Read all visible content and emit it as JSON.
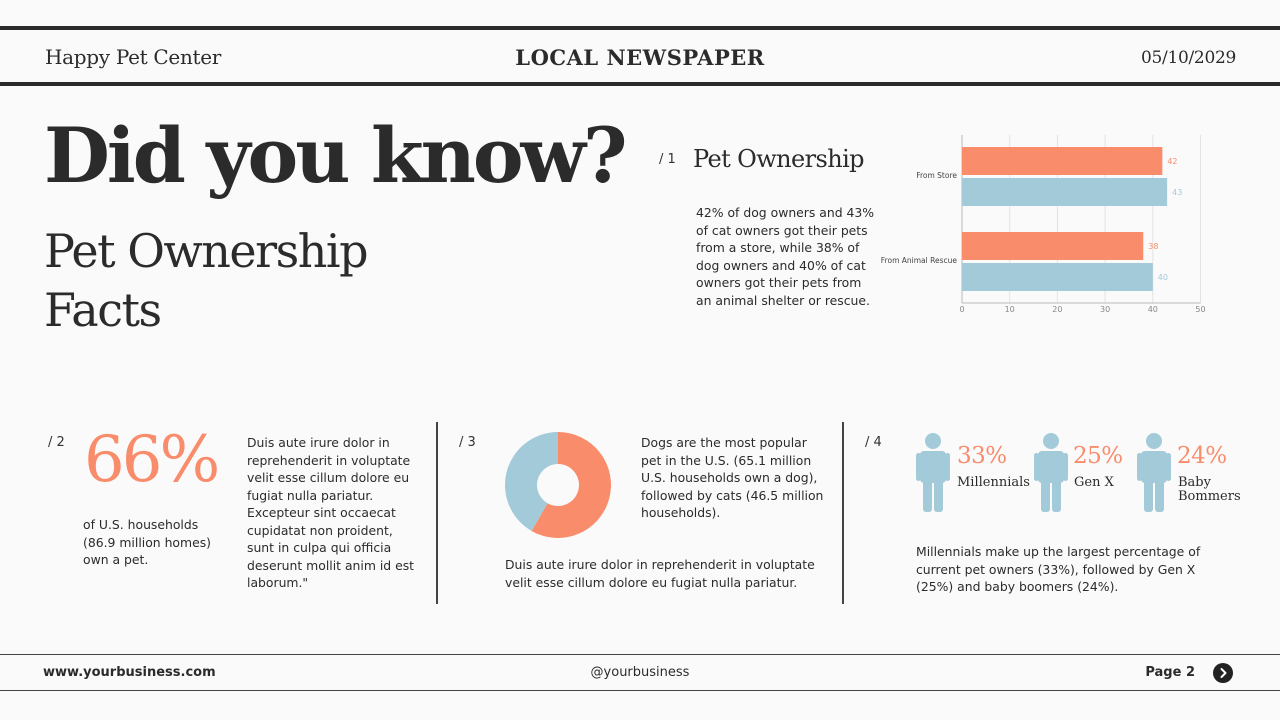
{
  "header": {
    "brand": "Happy Pet Center",
    "publication": "LOCAL NEWSPAPER",
    "date": "05/10/2029"
  },
  "hero": {
    "title": "Did you know?",
    "subtitle": "Pet Ownership Facts"
  },
  "section1": {
    "number": "/ 1",
    "title": "Pet Ownership",
    "text": "42% of dog owners and 43% of cat owners got their pets from a store, while 38% of dog owners and 40% of cat owners got their pets from an animal shelter or rescue."
  },
  "section2": {
    "number": "/ 2",
    "big_value": "66%",
    "caption": "of U.S. households (86.9 million homes) own a pet.",
    "body": "Duis aute irure dolor in reprehenderit in voluptate velit esse cillum dolore eu fugiat nulla pariatur. Excepteur sint occaecat cupidatat non proident, sunt in culpa qui officia deserunt mollit anim id est laborum.\""
  },
  "section3": {
    "number": "/ 3",
    "text": "Dogs are the most popular pet in the U.S. (65.1 million U.S. households own a dog), followed by cats (46.5 million households).",
    "body": "Duis aute irure dolor in reprehenderit in voluptate velit esse cillum dolore eu fugiat nulla pariatur."
  },
  "section4": {
    "number": "/ 4",
    "generations": [
      {
        "pct": "33%",
        "label": "Millennials"
      },
      {
        "pct": "25%",
        "label": "Gen X"
      },
      {
        "pct": "24%",
        "label": "Baby Bommers"
      }
    ],
    "text": "Millennials make up the largest percentage of current pet owners (33%), followed by Gen X (25%) and baby boomers (24%)."
  },
  "footer": {
    "website": "www.yourbusiness.com",
    "handle": "@yourbusiness",
    "page": "Page 2"
  },
  "colors": {
    "accent": "#f98c6b",
    "secondary": "#a3cad9",
    "text": "#2b2b2b",
    "background": "#fafafa"
  },
  "icons": {
    "next": "chevron-right-icon",
    "person": "person-icon"
  },
  "chart_data": [
    {
      "type": "bar",
      "orientation": "horizontal",
      "categories": [
        "From Store",
        "From Animal Rescue"
      ],
      "series": [
        {
          "values": [
            42,
            38
          ],
          "color": "#f98c6b"
        },
        {
          "values": [
            43,
            40
          ],
          "color": "#a3cad9"
        }
      ],
      "xlim": [
        0,
        50
      ],
      "xticks": [
        0,
        10,
        20,
        30,
        40,
        50
      ],
      "grid": true,
      "data_labels": true
    },
    {
      "type": "pie",
      "style": "donut",
      "slices": [
        {
          "value": 58.3,
          "color": "#f98c6b"
        },
        {
          "value": 41.7,
          "color": "#a3cad9"
        }
      ]
    }
  ]
}
